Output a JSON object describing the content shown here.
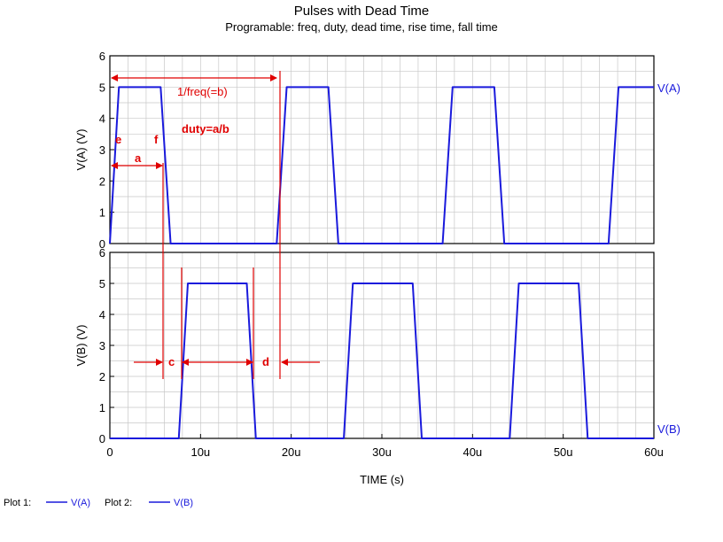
{
  "title": "Pulses with Dead Time",
  "subtitle": "Programable: freq, duty, dead time,  rise time, fall time",
  "colors": {
    "trace": "#1a1adc",
    "annotation": "#e00000",
    "grid": "#c8c8c8",
    "axis": "#000000"
  },
  "chart_data": [
    {
      "type": "line",
      "name": "plot1",
      "ylabel": "V(A)  (V)",
      "ylim": [
        0,
        6
      ],
      "xlim": [
        0,
        60
      ],
      "yticks": [
        0,
        1,
        2,
        3,
        4,
        5,
        6
      ],
      "grid": true,
      "series": [
        {
          "name": "V(A)",
          "x": [
            0,
            1,
            5.6,
            6.7,
            18.4,
            19.5,
            24.1,
            25.2,
            36.7,
            37.8,
            42.4,
            43.5,
            55,
            56.1,
            60
          ],
          "y": [
            0,
            5,
            5,
            0,
            0,
            5,
            5,
            0,
            0,
            5,
            5,
            0,
            0,
            5,
            5
          ]
        }
      ]
    },
    {
      "type": "line",
      "name": "plot2",
      "ylabel": "V(B)  (V)",
      "xlabel": "TIME  (s)",
      "ylim": [
        0,
        6
      ],
      "xlim": [
        0,
        60
      ],
      "yticks": [
        0,
        1,
        2,
        3,
        4,
        5,
        6
      ],
      "xticks": [
        0,
        10,
        20,
        30,
        40,
        50,
        60
      ],
      "xticklabels": [
        "0",
        "10u",
        "20u",
        "30u",
        "40u",
        "50u",
        "60u"
      ],
      "grid": true,
      "series": [
        {
          "name": "V(B)",
          "x": [
            0,
            7.6,
            8.6,
            15.1,
            16.1,
            25.8,
            26.8,
            33.4,
            34.4,
            44.1,
            45.1,
            51.7,
            52.7,
            60
          ],
          "y": [
            0,
            0,
            5,
            5,
            0,
            0,
            5,
            5,
            0,
            0,
            5,
            5,
            0,
            0
          ]
        }
      ]
    }
  ],
  "annotations": {
    "period": "1/freq(=b)",
    "duty": "duty=a/b",
    "a": "a",
    "c": "c",
    "d": "d",
    "e": "e",
    "f": "f"
  },
  "legend": {
    "plot1_label": "Plot 1:",
    "plot1_series": "V(A)",
    "plot2_label": "Plot 2:",
    "plot2_series": "V(B)"
  }
}
